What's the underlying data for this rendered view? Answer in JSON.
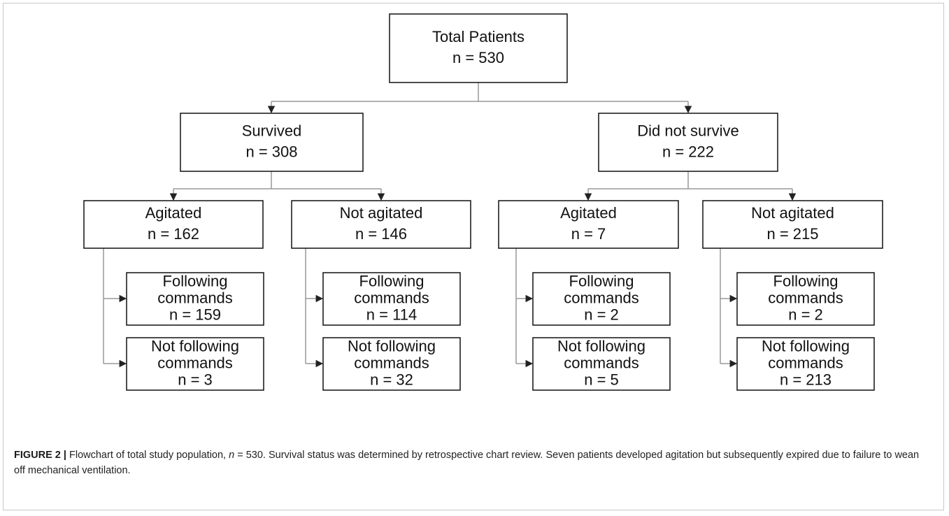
{
  "nodes": [
    {
      "lines": [
        "Total Patients",
        "n = 530"
      ]
    },
    {
      "lines": [
        "Survived",
        "n = 308"
      ]
    },
    {
      "lines": [
        "Did not survive",
        "n = 222"
      ]
    },
    {
      "lines": [
        "Agitated",
        "n = 162"
      ]
    },
    {
      "lines": [
        "Not agitated",
        "n = 146"
      ]
    },
    {
      "lines": [
        "Agitated",
        "n = 7"
      ]
    },
    {
      "lines": [
        "Not agitated",
        "n = 215"
      ]
    },
    {
      "lines": [
        "Following",
        "commands",
        "n = 159"
      ]
    },
    {
      "lines": [
        "Not following",
        "commands",
        "n = 3"
      ]
    },
    {
      "lines": [
        "Following",
        "commands",
        "n = 114"
      ]
    },
    {
      "lines": [
        "Not following",
        "commands",
        "n = 32"
      ]
    },
    {
      "lines": [
        "Following",
        "commands",
        "n = 2"
      ]
    },
    {
      "lines": [
        "Not following",
        "commands",
        "n = 5"
      ]
    },
    {
      "lines": [
        "Following",
        "commands",
        "n = 2"
      ]
    },
    {
      "lines": [
        "Not following",
        "commands",
        "n = 213"
      ]
    }
  ],
  "caption": {
    "label": "FIGURE 2 |",
    "parts": [
      "Flowchart of total study population, ",
      "n",
      " = 530. Survival status was determined by retrospective chart review. Seven patients developed agitation but subsequently expired due to failure to wean off mechanical ventilation."
    ]
  }
}
